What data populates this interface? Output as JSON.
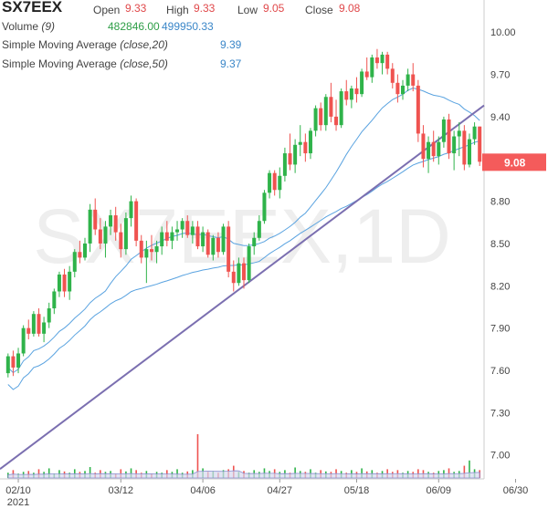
{
  "header": {
    "symbol": "SX7EEX",
    "open_label": "Open",
    "open_value": "9.33",
    "high_label": "High",
    "high_value": "9.33",
    "low_label": "Low",
    "low_value": "9.05",
    "close_label": "Close",
    "close_value": "9.08",
    "volume_label": "Volume",
    "volume_param": "(9)",
    "volume_value": "482846.00",
    "volume_avg": "499950.33",
    "sma20_label": "Simple Moving Average",
    "sma20_param": "(close,20)",
    "sma20_value": "9.39",
    "sma50_label": "Simple Moving Average",
    "sma50_param": "(close,50)",
    "sma50_value": "9.37"
  },
  "watermark": "SX7EEX,1D",
  "last_price_badge": "9.08",
  "colors": {
    "up": "#2fb34a",
    "down": "#ef5350",
    "sma": "#5aa3e0",
    "trendline": "#7b6fb0",
    "badge": "#f45b5b",
    "volume_area": "#d6d8f0"
  },
  "chart_data": {
    "type": "candlestick",
    "y_ticks": [
      7.0,
      7.3,
      7.6,
      7.9,
      8.2,
      8.5,
      8.8,
      9.1,
      9.4,
      9.7,
      10.0
    ],
    "y_tick_labels": [
      "7.00",
      "7.30",
      "7.60",
      "7.90",
      "8.20",
      "8.50",
      "8.80",
      "9.10",
      "9.40",
      "9.70",
      "10.00"
    ],
    "ylim": [
      6.83,
      10.15
    ],
    "x_tick_labels": [
      "02/10",
      "03/12",
      "04/06",
      "04/27",
      "05/18",
      "06/09",
      "06/30"
    ],
    "x_tick_indices": [
      2,
      22,
      38,
      53,
      68,
      84,
      99
    ],
    "year_label": "2021",
    "ohlc": [
      [
        7.58,
        7.72,
        7.55,
        7.7
      ],
      [
        7.7,
        7.74,
        7.56,
        7.62
      ],
      [
        7.62,
        7.76,
        7.58,
        7.72
      ],
      [
        7.72,
        7.92,
        7.7,
        7.9
      ],
      [
        7.9,
        7.96,
        7.82,
        7.86
      ],
      [
        7.86,
        8.02,
        7.84,
        8.0
      ],
      [
        8.0,
        8.04,
        7.84,
        7.86
      ],
      [
        7.86,
        7.98,
        7.8,
        7.94
      ],
      [
        7.94,
        8.08,
        7.9,
        8.04
      ],
      [
        8.04,
        8.18,
        8.0,
        8.16
      ],
      [
        8.16,
        8.3,
        8.12,
        8.28
      ],
      [
        8.28,
        8.32,
        8.12,
        8.16
      ],
      [
        8.16,
        8.34,
        8.1,
        8.3
      ],
      [
        8.3,
        8.46,
        8.26,
        8.44
      ],
      [
        8.44,
        8.52,
        8.36,
        8.4
      ],
      [
        8.4,
        8.54,
        8.38,
        8.5
      ],
      [
        8.5,
        8.78,
        8.44,
        8.74
      ],
      [
        8.74,
        8.82,
        8.56,
        8.6
      ],
      [
        8.6,
        8.68,
        8.46,
        8.5
      ],
      [
        8.5,
        8.66,
        8.4,
        8.62
      ],
      [
        8.62,
        8.74,
        8.56,
        8.7
      ],
      [
        8.7,
        8.76,
        8.52,
        8.58
      ],
      [
        8.58,
        8.64,
        8.4,
        8.46
      ],
      [
        8.46,
        8.72,
        8.42,
        8.68
      ],
      [
        8.68,
        8.84,
        8.62,
        8.8
      ],
      [
        8.8,
        8.82,
        8.48,
        8.52
      ],
      [
        8.52,
        8.56,
        8.36,
        8.4
      ],
      [
        8.4,
        8.52,
        8.22,
        8.46
      ],
      [
        8.46,
        8.56,
        8.38,
        8.44
      ],
      [
        8.44,
        8.52,
        8.36,
        8.48
      ],
      [
        8.48,
        8.62,
        8.42,
        8.58
      ],
      [
        8.58,
        8.66,
        8.48,
        8.52
      ],
      [
        8.52,
        8.62,
        8.46,
        8.58
      ],
      [
        8.58,
        8.66,
        8.52,
        8.6
      ],
      [
        8.6,
        8.68,
        8.54,
        8.66
      ],
      [
        8.66,
        8.7,
        8.54,
        8.56
      ],
      [
        8.56,
        8.66,
        8.5,
        8.62
      ],
      [
        8.62,
        8.66,
        8.46,
        8.48
      ],
      [
        8.48,
        8.62,
        8.44,
        8.58
      ],
      [
        8.58,
        8.6,
        8.4,
        8.42
      ],
      [
        8.42,
        8.56,
        8.38,
        8.54
      ],
      [
        8.54,
        8.58,
        8.4,
        8.44
      ],
      [
        8.44,
        8.64,
        8.42,
        8.62
      ],
      [
        8.62,
        8.66,
        8.26,
        8.3
      ],
      [
        8.3,
        8.38,
        8.16,
        8.22
      ],
      [
        8.22,
        8.4,
        8.2,
        8.36
      ],
      [
        8.36,
        8.4,
        8.18,
        8.24
      ],
      [
        8.24,
        8.5,
        8.22,
        8.48
      ],
      [
        8.48,
        8.58,
        8.42,
        8.54
      ],
      [
        8.54,
        8.7,
        8.52,
        8.66
      ],
      [
        8.66,
        8.88,
        8.64,
        8.86
      ],
      [
        8.86,
        9.02,
        8.82,
        9.0
      ],
      [
        9.0,
        9.02,
        8.84,
        8.88
      ],
      [
        8.88,
        9.04,
        8.82,
        8.98
      ],
      [
        8.98,
        9.18,
        8.94,
        9.14
      ],
      [
        9.14,
        9.28,
        9.02,
        9.06
      ],
      [
        9.06,
        9.24,
        9.0,
        9.2
      ],
      [
        9.2,
        9.34,
        9.12,
        9.22
      ],
      [
        9.22,
        9.28,
        9.08,
        9.14
      ],
      [
        9.14,
        9.32,
        9.1,
        9.3
      ],
      [
        9.3,
        9.48,
        9.26,
        9.46
      ],
      [
        9.46,
        9.5,
        9.3,
        9.34
      ],
      [
        9.34,
        9.56,
        9.3,
        9.54
      ],
      [
        9.54,
        9.64,
        9.36,
        9.4
      ],
      [
        9.4,
        9.52,
        9.3,
        9.34
      ],
      [
        9.34,
        9.6,
        9.32,
        9.58
      ],
      [
        9.58,
        9.66,
        9.48,
        9.52
      ],
      [
        9.52,
        9.62,
        9.46,
        9.6
      ],
      [
        9.6,
        9.68,
        9.5,
        9.56
      ],
      [
        9.56,
        9.74,
        9.54,
        9.72
      ],
      [
        9.72,
        9.82,
        9.66,
        9.68
      ],
      [
        9.68,
        9.84,
        9.64,
        9.82
      ],
      [
        9.82,
        9.88,
        9.74,
        9.78
      ],
      [
        9.78,
        9.86,
        9.7,
        9.84
      ],
      [
        9.84,
        9.86,
        9.7,
        9.74
      ],
      [
        9.74,
        9.78,
        9.6,
        9.64
      ],
      [
        9.64,
        9.7,
        9.5,
        9.56
      ],
      [
        9.56,
        9.66,
        9.52,
        9.62
      ],
      [
        9.62,
        9.74,
        9.58,
        9.7
      ],
      [
        9.7,
        9.78,
        9.58,
        9.62
      ],
      [
        9.62,
        9.66,
        9.22,
        9.28
      ],
      [
        9.28,
        9.34,
        9.04,
        9.1
      ],
      [
        9.1,
        9.26,
        9.0,
        9.22
      ],
      [
        9.22,
        9.3,
        9.08,
        9.12
      ],
      [
        9.12,
        9.26,
        9.06,
        9.22
      ],
      [
        9.22,
        9.4,
        9.18,
        9.38
      ],
      [
        9.38,
        9.42,
        9.1,
        9.14
      ],
      [
        9.14,
        9.3,
        9.02,
        9.26
      ],
      [
        9.26,
        9.36,
        9.12,
        9.3
      ],
      [
        9.3,
        9.34,
        9.02,
        9.06
      ],
      [
        9.06,
        9.28,
        9.04,
        9.24
      ],
      [
        9.24,
        9.36,
        9.2,
        9.33
      ],
      [
        9.33,
        9.33,
        9.05,
        9.08
      ]
    ],
    "volume": [
      0.12,
      0.18,
      0.1,
      0.14,
      0.16,
      0.12,
      0.2,
      0.14,
      0.22,
      0.1,
      0.18,
      0.15,
      0.12,
      0.2,
      0.14,
      0.16,
      0.25,
      0.12,
      0.18,
      0.14,
      0.16,
      0.1,
      0.2,
      0.15,
      0.22,
      0.18,
      0.12,
      0.16,
      0.1,
      0.14,
      0.12,
      0.18,
      0.14,
      0.2,
      0.12,
      0.15,
      0.18,
      1.0,
      0.22,
      0.14,
      0.16,
      0.12,
      0.18,
      0.2,
      0.28,
      0.14,
      0.16,
      0.12,
      0.18,
      0.14,
      0.22,
      0.16,
      0.2,
      0.14,
      0.18,
      0.12,
      0.24,
      0.16,
      0.14,
      0.2,
      0.12,
      0.18,
      0.15,
      0.14,
      0.2,
      0.16,
      0.12,
      0.18,
      0.14,
      0.22,
      0.15,
      0.18,
      0.12,
      0.16,
      0.2,
      0.14,
      0.18,
      0.12,
      0.16,
      0.14,
      0.2,
      0.18,
      0.14,
      0.12,
      0.16,
      0.18,
      0.22,
      0.14,
      0.16,
      0.28,
      0.4,
      0.2,
      0.18
    ]
  }
}
